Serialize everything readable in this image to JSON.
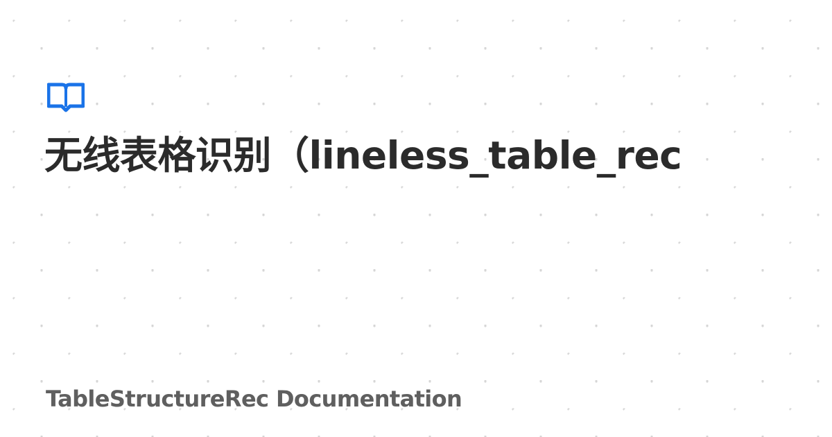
{
  "page": {
    "title": "无线表格识别（lineless_table_rec",
    "site_name": "TableStructureRec Documentation"
  },
  "colors": {
    "accent": "#1a73e8",
    "title_text": "#2b2b2b",
    "site_name_text": "#5f5f5f",
    "pattern_dot": "#d6d6d6",
    "background": "#ffffff"
  },
  "icons": {
    "logo": "open-book-icon"
  }
}
